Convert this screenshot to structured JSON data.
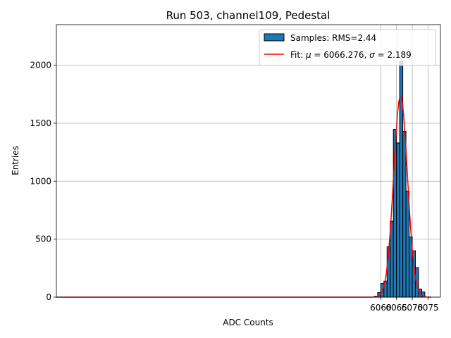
{
  "chart_data": {
    "type": "bar",
    "title": "Run 503, channel109, Pedestal",
    "xlabel": "ADC Counts",
    "ylabel": "Entries",
    "xlim": [
      5956.95,
      6078.95
    ],
    "ylim": [
      0,
      2350
    ],
    "xticks": [
      6060,
      6065,
      6070,
      6075
    ],
    "yticks": [
      0,
      500,
      1000,
      1500,
      2000
    ],
    "grid": true,
    "legend_position": "top-right",
    "histogram": {
      "name": "Samples: RMS=2.44",
      "color": "#1f77b4",
      "edgecolor": "#000000",
      "bin_edges": [
        6058,
        6059,
        6060,
        6061,
        6062,
        6063,
        6064,
        6065,
        6066,
        6067,
        6068,
        6069,
        6070,
        6071,
        6072,
        6073,
        6074
      ],
      "counts": [
        8,
        40,
        118,
        138,
        435,
        655,
        1448,
        1330,
        2035,
        1430,
        915,
        520,
        400,
        255,
        70,
        45
      ]
    },
    "fit": {
      "name_prefix": "Fit: ",
      "mu_symbol": "μ",
      "mu_text": " = 6066.276, ",
      "sigma_symbol": "σ",
      "sigma_text": " = 2.189",
      "color": "#ff0000",
      "mu": 6066.276,
      "sigma": 2.189,
      "amplitude": 1740,
      "x_range": [
        5957,
        6076
      ]
    }
  }
}
